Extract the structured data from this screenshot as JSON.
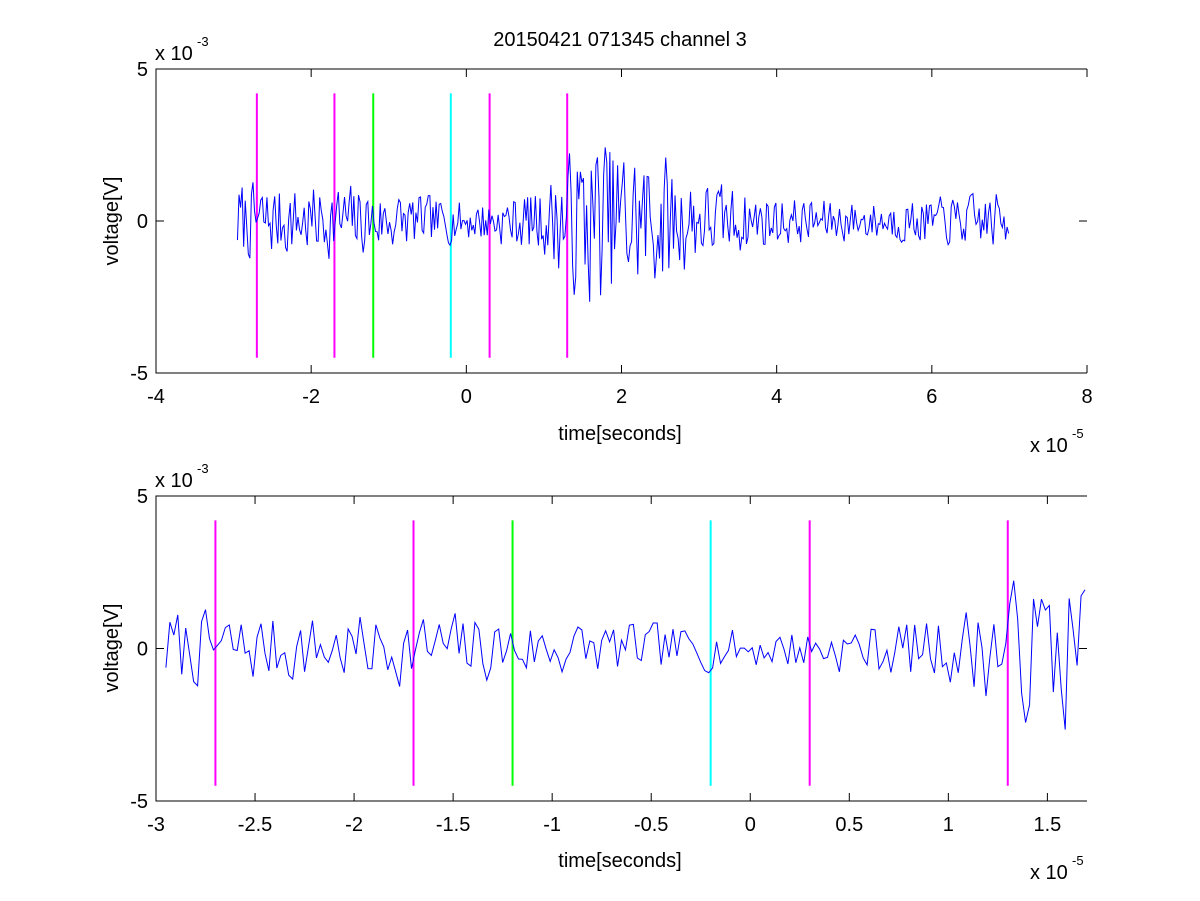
{
  "figure": {
    "title": "20150421 071345 channel 3",
    "background": "#ffffff"
  },
  "colors": {
    "signal": "#0000ff",
    "marker_magenta": "#ff00ff",
    "marker_green": "#00ff00",
    "marker_cyan": "#00ffff",
    "axes": "#000000"
  },
  "chart_data": [
    {
      "type": "line",
      "title": "20150421 071345 channel 3",
      "xlabel": "time[seconds]",
      "ylabel": "voltage[V]",
      "x_multiplier_label": "x 10",
      "x_multiplier_power": "-5",
      "y_multiplier_label": "x 10",
      "y_multiplier_power": "-3",
      "xlim": [
        -4,
        8
      ],
      "ylim": [
        -5,
        5
      ],
      "x_ticks": [
        -4,
        -2,
        0,
        2,
        4,
        6,
        8
      ],
      "x_tick_labels": [
        "-4",
        "-2",
        "0",
        "2",
        "4",
        "6",
        "8"
      ],
      "y_ticks": [
        -5,
        0,
        5
      ],
      "y_tick_labels": [
        "-5",
        "0",
        "5"
      ],
      "grid": false,
      "signal": {
        "x_start": -2.95,
        "x_end": 7.0,
        "seed": 7,
        "envelope_x": [
          -2.95,
          -2.2,
          -1.5,
          -1.0,
          0.0,
          0.5,
          1.0,
          1.3,
          1.6,
          2.5,
          3.0,
          4.0,
          5.0,
          6.0,
          7.0
        ],
        "envelope_y": [
          1.6,
          1.4,
          1.5,
          1.2,
          0.8,
          1.0,
          1.4,
          2.6,
          3.6,
          2.8,
          1.7,
          1.0,
          0.8,
          0.9,
          1.2
        ]
      },
      "markers": [
        {
          "x": -2.7,
          "color": "#ff00ff"
        },
        {
          "x": -1.7,
          "color": "#ff00ff"
        },
        {
          "x": -1.2,
          "color": "#00ff00"
        },
        {
          "x": -0.2,
          "color": "#00ffff"
        },
        {
          "x": 0.3,
          "color": "#ff00ff"
        },
        {
          "x": 1.3,
          "color": "#ff00ff"
        }
      ],
      "marker_y_range": [
        -4.5,
        4.2
      ]
    },
    {
      "type": "line",
      "xlabel": "time[seconds]",
      "ylabel": "voltage[V]",
      "x_multiplier_label": "x 10",
      "x_multiplier_power": "-5",
      "y_multiplier_label": "x 10",
      "y_multiplier_power": "-3",
      "xlim": [
        -3.0,
        1.7
      ],
      "ylim": [
        -5,
        5
      ],
      "x_ticks": [
        -3,
        -2.5,
        -2,
        -1.5,
        -1,
        -0.5,
        0,
        0.5,
        1,
        1.5
      ],
      "x_tick_labels": [
        "-3",
        "-2.5",
        "-2",
        "-1.5",
        "-1",
        "-0.5",
        "0",
        "0.5",
        "1",
        "1.5"
      ],
      "y_ticks": [
        -5,
        0,
        5
      ],
      "y_tick_labels": [
        "-5",
        "0",
        "5"
      ],
      "grid": false,
      "signal": {
        "x_start": -2.95,
        "x_end": 1.7,
        "seed": 7,
        "envelope_x": [
          -2.95,
          -2.2,
          -1.5,
          -1.0,
          0.0,
          0.5,
          1.0,
          1.3,
          1.6,
          1.7
        ],
        "envelope_y": [
          1.6,
          1.4,
          1.5,
          1.2,
          0.8,
          1.0,
          1.4,
          2.6,
          3.6,
          3.2
        ]
      },
      "markers": [
        {
          "x": -2.7,
          "color": "#ff00ff"
        },
        {
          "x": -1.7,
          "color": "#ff00ff"
        },
        {
          "x": -1.2,
          "color": "#00ff00"
        },
        {
          "x": -0.2,
          "color": "#00ffff"
        },
        {
          "x": 0.3,
          "color": "#ff00ff"
        },
        {
          "x": 1.3,
          "color": "#ff00ff"
        }
      ],
      "marker_y_range": [
        -4.5,
        4.2
      ]
    }
  ]
}
